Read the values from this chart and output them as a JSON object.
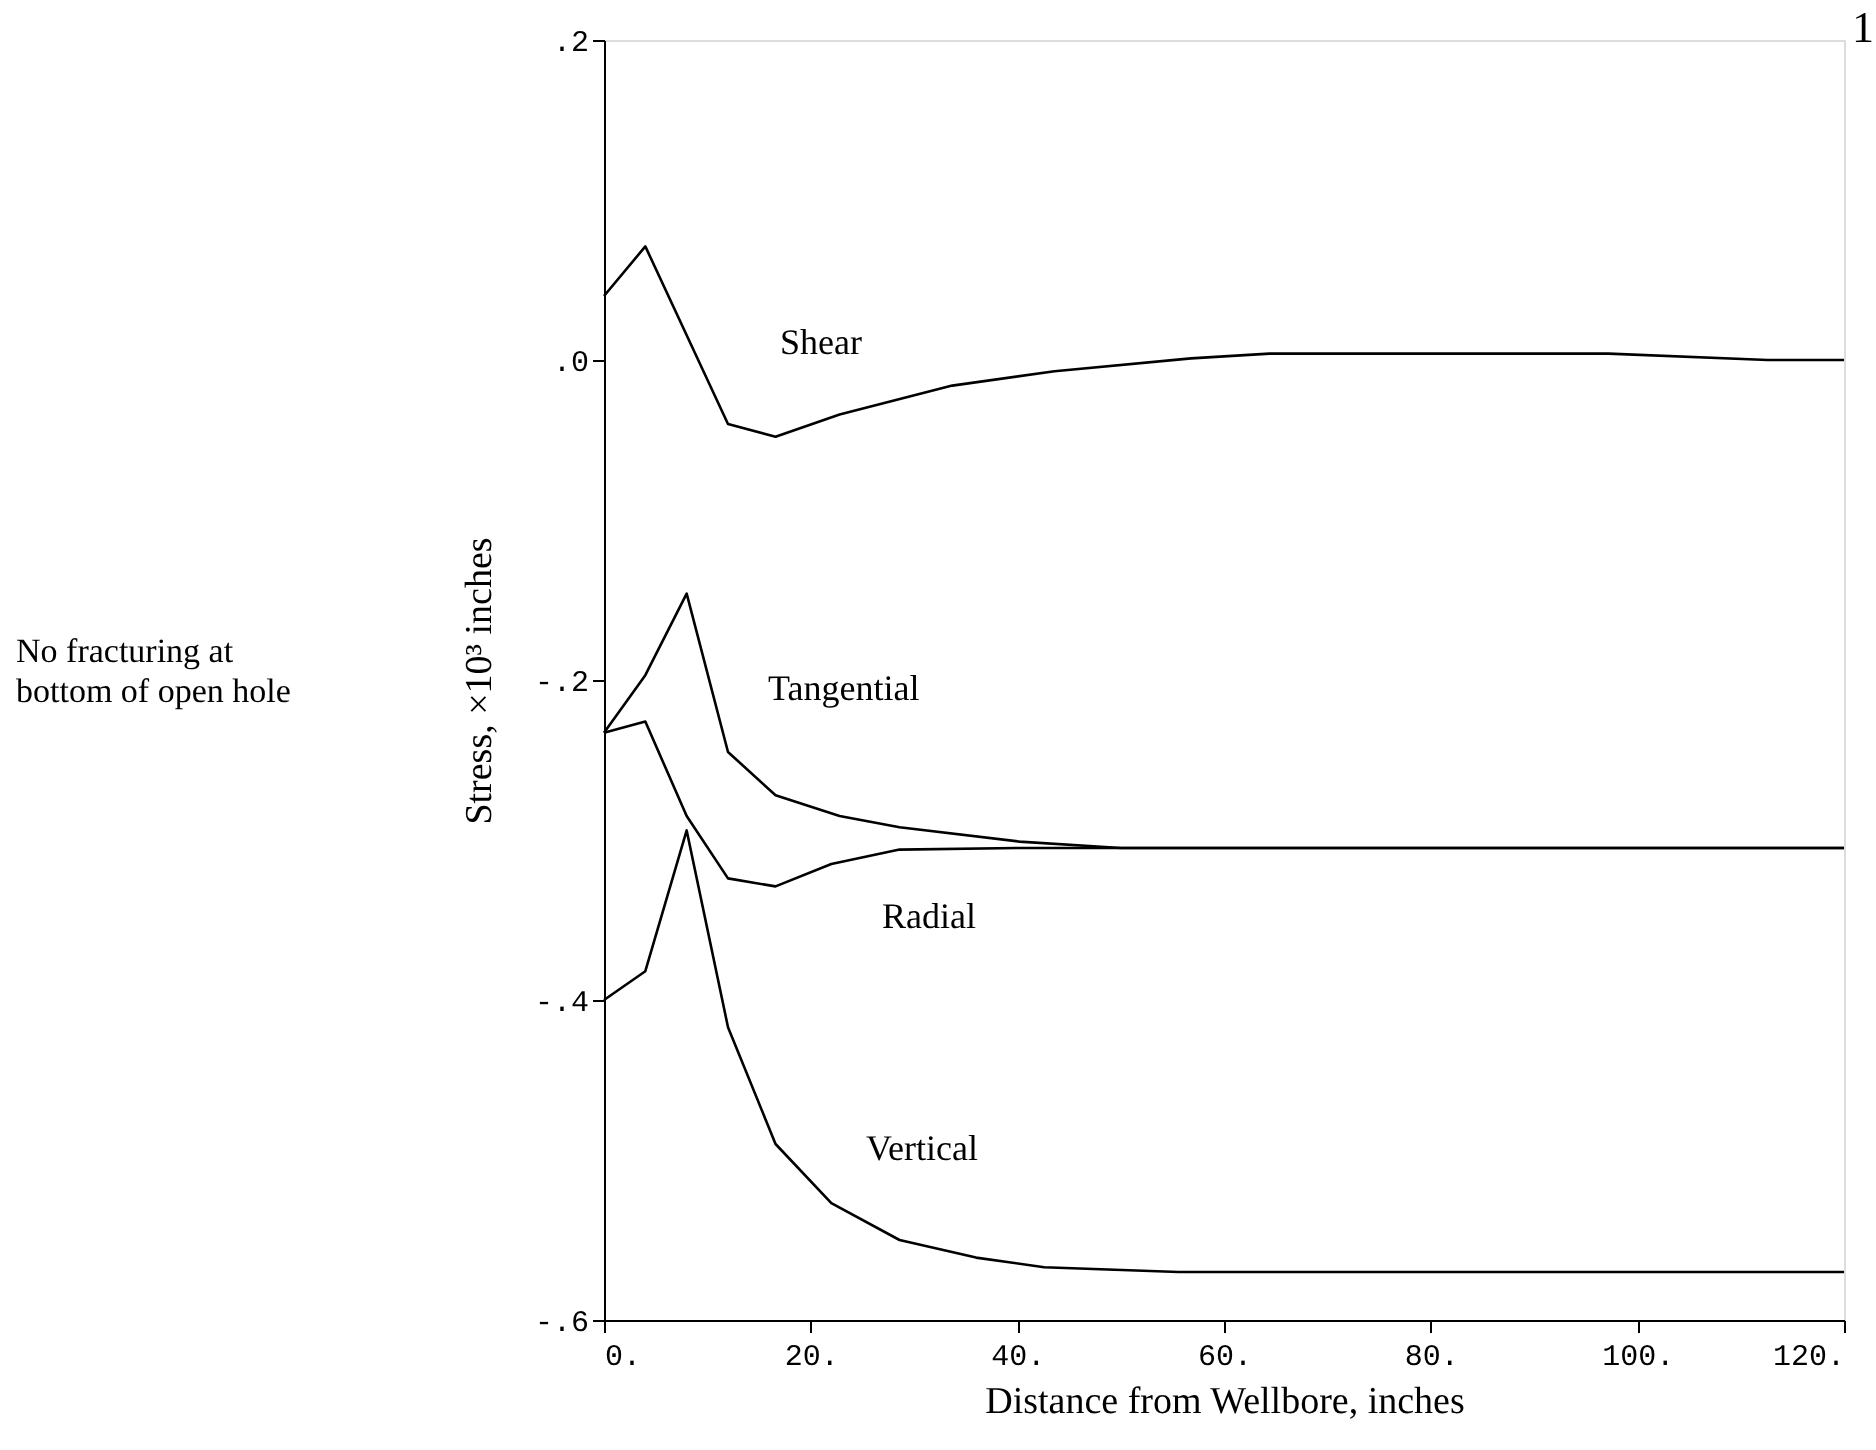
{
  "chart_data": {
    "type": "line",
    "xlabel": "Distance from Wellbore, inches",
    "ylabel": "Stress, ×10³ inches",
    "xlim": [
      0,
      120
    ],
    "xticks": [
      {
        "value": 0,
        "label": "0."
      },
      {
        "value": 20,
        "label": "20."
      },
      {
        "value": 40,
        "label": "40."
      },
      {
        "value": 60,
        "label": "60."
      },
      {
        "value": 80,
        "label": "80."
      },
      {
        "value": 100,
        "label": "100."
      },
      {
        "value": 120,
        "label": "120."
      }
    ],
    "ylim": [
      -0.6,
      0.2
    ],
    "yticks": [
      {
        "value": -0.6,
        "label": "-.6"
      },
      {
        "value": -0.4,
        "label": "-.4"
      },
      {
        "value": -0.2,
        "label": "-.2"
      },
      {
        "value": 0,
        "label": ".0"
      },
      {
        "value": 0.2,
        "label": ".2"
      }
    ],
    "grid": false,
    "marker": "none",
    "line_style": "solid",
    "series": [
      {
        "name": "Shear",
        "color": "#000000",
        "x": [
          0,
          4,
          12,
          16.6,
          22.8,
          33.7,
          43.6,
          56.8,
          64.4,
          97.2,
          112.6,
          120
        ],
        "values": [
          0.04,
          0.071,
          -0.04,
          -0.048,
          -0.034,
          -0.016,
          -0.007,
          0.001,
          0.004,
          0.004,
          0,
          0
        ]
      },
      {
        "name": "Tangential",
        "color": "#000000",
        "x": [
          0,
          4,
          8,
          12,
          16.6,
          22.8,
          28.6,
          40.2,
          50,
          120
        ],
        "values": [
          -0.233,
          -0.197,
          -0.146,
          -0.245,
          -0.272,
          -0.285,
          -0.292,
          -0.301,
          -0.305,
          -0.305
        ]
      },
      {
        "name": "Radial",
        "color": "#000000",
        "x": [
          0,
          4,
          8,
          12,
          16.6,
          22,
          28.6,
          40,
          120
        ],
        "values": [
          -0.233,
          -0.226,
          -0.285,
          -0.324,
          -0.329,
          -0.315,
          -0.306,
          -0.305,
          -0.305
        ]
      },
      {
        "name": "Vertical",
        "color": "#000000",
        "x": [
          0,
          4,
          8,
          12,
          16.6,
          22,
          28.6,
          36,
          42.6,
          55.6,
          120
        ],
        "values": [
          -0.4,
          -0.382,
          -0.294,
          -0.417,
          -0.49,
          -0.527,
          -0.55,
          -0.561,
          -0.567,
          -0.57,
          -0.57
        ]
      }
    ],
    "annotations": [
      "No fracturing at\nbottom of open hole",
      "1"
    ]
  }
}
